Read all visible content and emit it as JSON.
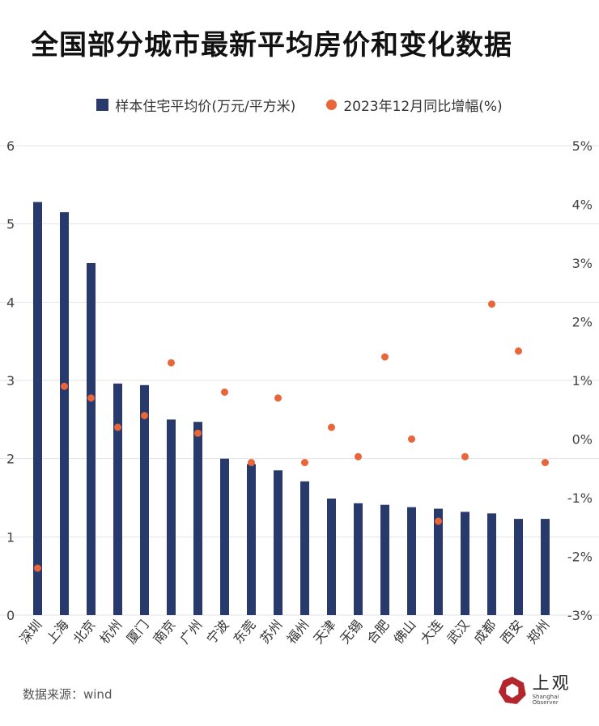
{
  "title": "全国部分城市最新平均房价和变化数据",
  "source": "数据来源：wind",
  "logo": {
    "text": "上观",
    "subtext": "Shanghai Observer"
  },
  "colors": {
    "bar": "#283A6B",
    "dot": "#E8663A",
    "grid": "#E3E3E3"
  },
  "chart_data": {
    "type": "bar",
    "categories": [
      "深圳",
      "上海",
      "北京",
      "杭州",
      "厦门",
      "南京",
      "广州",
      "宁波",
      "东莞",
      "苏州",
      "福州",
      "天津",
      "无锡",
      "合肥",
      "佛山",
      "大连",
      "武汉",
      "成都",
      "西安",
      "郑州"
    ],
    "series": [
      {
        "name": "样本住宅平均价(万元/平方米)",
        "type": "bar",
        "axis": "left",
        "values": [
          5.28,
          5.15,
          4.5,
          2.96,
          2.94,
          2.5,
          2.47,
          2.0,
          1.93,
          1.85,
          1.71,
          1.49,
          1.43,
          1.41,
          1.38,
          1.36,
          1.32,
          1.3,
          1.23,
          1.23
        ]
      },
      {
        "name": "2023年12月同比增幅(%)",
        "type": "scatter",
        "axis": "right",
        "values": [
          -2.2,
          0.9,
          0.7,
          0.2,
          0.4,
          1.3,
          0.1,
          0.8,
          -0.4,
          0.7,
          -0.4,
          0.2,
          -0.3,
          1.4,
          0.0,
          -1.4,
          -0.3,
          2.3,
          1.5,
          -0.4
        ]
      }
    ],
    "y_left": {
      "range": [
        0,
        6
      ],
      "ticks": [
        "0",
        "1",
        "2",
        "3",
        "4",
        "5",
        "6"
      ]
    },
    "y_right": {
      "range": [
        -3,
        5
      ],
      "ticks": [
        "-3%",
        "-2%",
        "-1%",
        "0%",
        "1%",
        "2%",
        "3%",
        "4%",
        "5%"
      ]
    },
    "grid": true,
    "legend": "top"
  }
}
